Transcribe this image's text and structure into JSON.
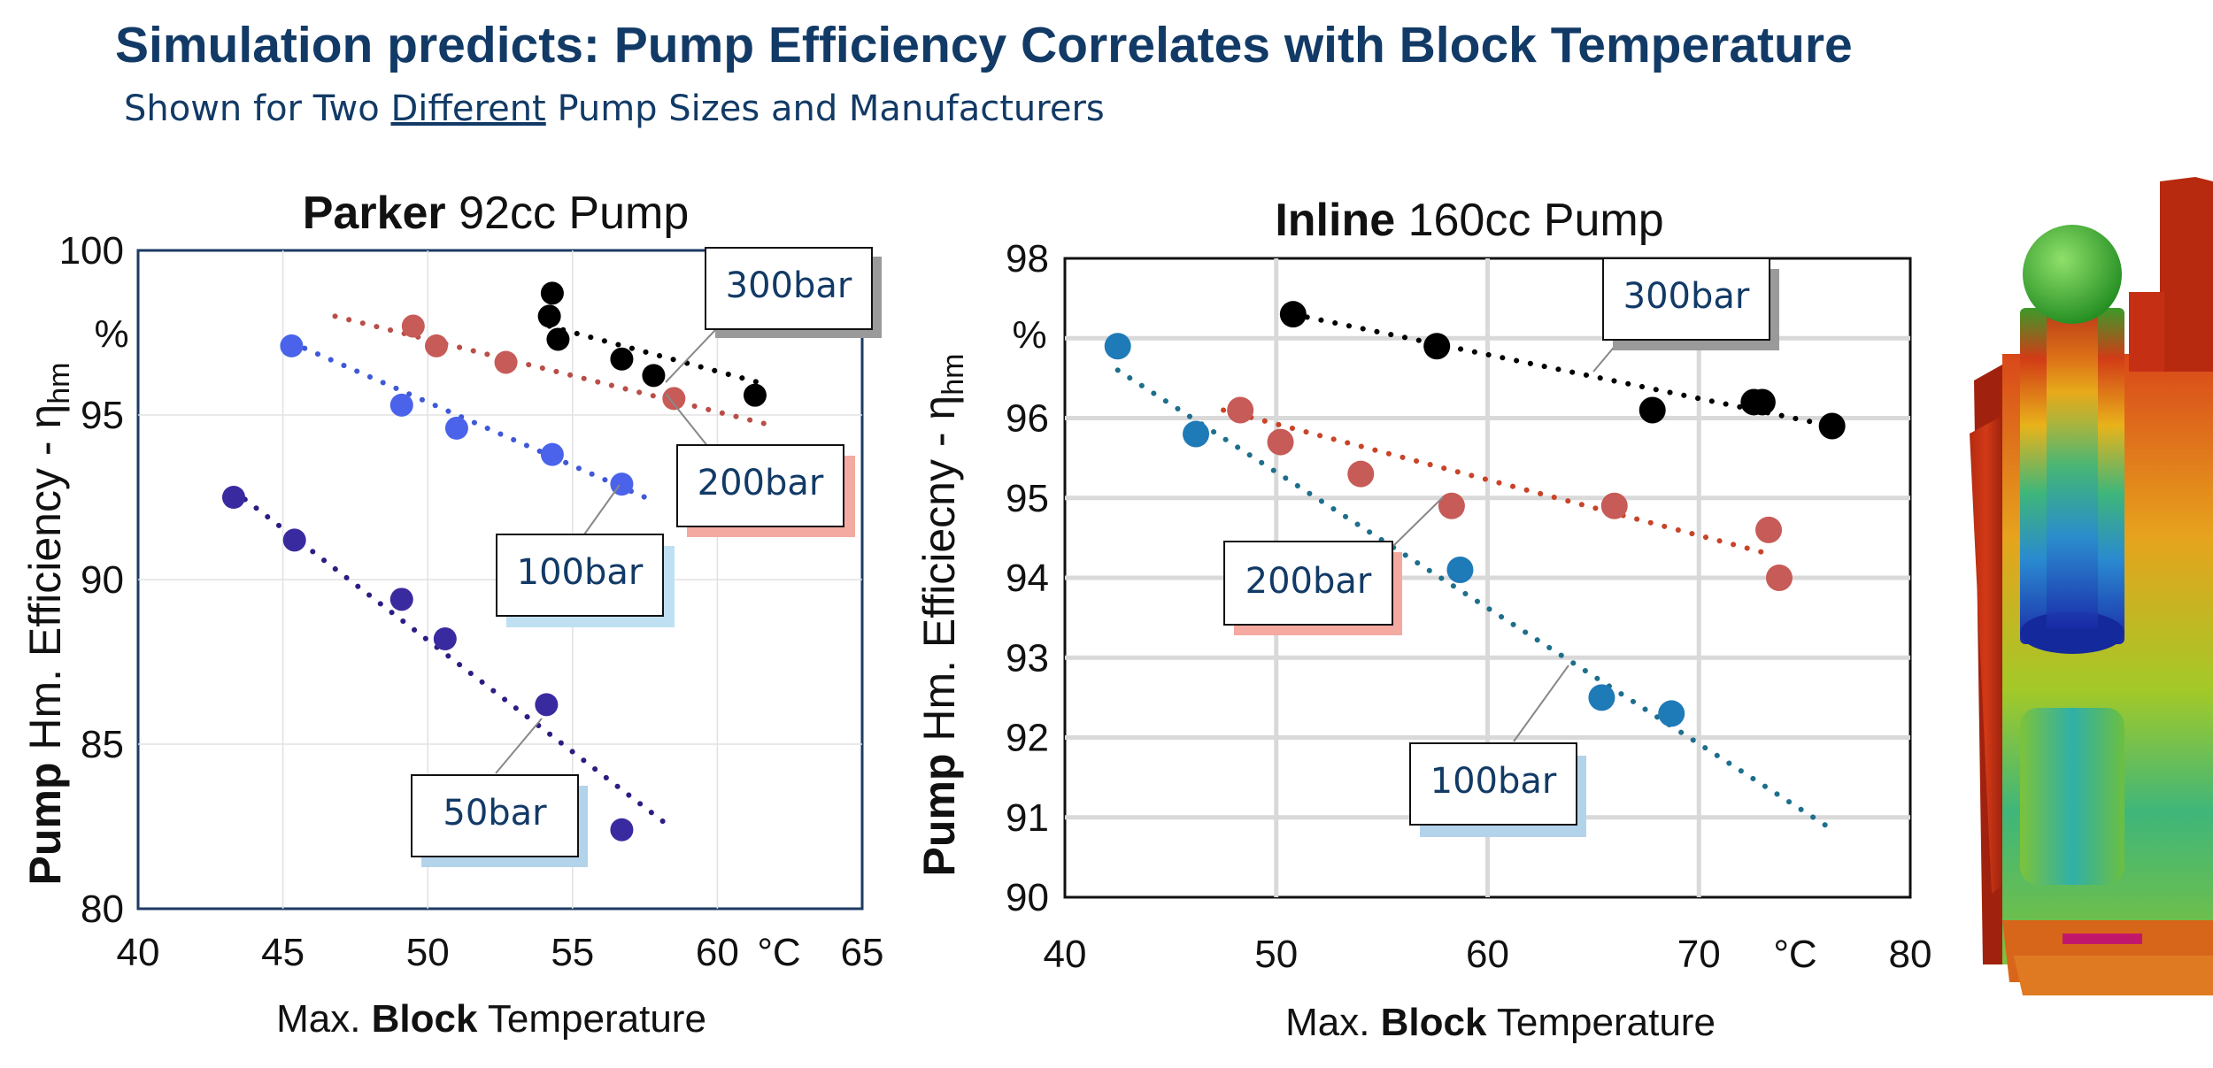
{
  "header": {
    "title": "Simulation predicts: Pump Efficiency Correlates with Block Temperature",
    "subtitle_before": "Shown for Two ",
    "subtitle_emph": "Different",
    "subtitle_after": " Pump Sizes and Manufacturers"
  },
  "chart_data": [
    {
      "type": "scatter",
      "title_bold": "Parker",
      "title_rest": " 92cc Pump",
      "ylabel_bold": "Pump",
      "ylabel_rest": " Hm. Efficiency - η",
      "ylabel_sub": "hm",
      "ylabel_unit": "%",
      "xlabel_pre": "Max. ",
      "xlabel_bold": "Block",
      "xlabel_post": " Temperature",
      "xunit": "°C",
      "xlim": [
        40,
        65
      ],
      "ylim": [
        80,
        100
      ],
      "xticks": [
        40,
        45,
        50,
        55,
        60,
        65
      ],
      "yticks": [
        80,
        85,
        90,
        95,
        100
      ],
      "grid": true,
      "series": [
        {
          "name": "50bar",
          "color": "#3a2aa0",
          "trend_color": "#2a1e82",
          "x": [
            43.3,
            45.4,
            49.1,
            50.6,
            54.1,
            56.7
          ],
          "y": [
            92.5,
            91.2,
            89.4,
            88.2,
            86.2,
            82.4
          ],
          "trend": [
            [
              43.3,
              92.7
            ],
            [
              58.2,
              82.6
            ]
          ]
        },
        {
          "name": "100bar",
          "color": "#4a63ea",
          "trend_color": "#3f58d8",
          "x": [
            45.3,
            49.1,
            51.0,
            54.3,
            56.7
          ],
          "y": [
            97.1,
            95.3,
            94.6,
            93.8,
            92.9
          ],
          "trend": [
            [
              45.3,
              97.2
            ],
            [
              57.5,
              92.5
            ]
          ]
        },
        {
          "name": "200bar",
          "color": "#c75b57",
          "trend_color": "#b84e48",
          "x": [
            49.5,
            50.3,
            52.7,
            58.5
          ],
          "y": [
            97.7,
            97.1,
            96.6,
            95.5
          ],
          "trend": [
            [
              46.8,
              98.0
            ],
            [
              61.8,
              94.7
            ]
          ]
        },
        {
          "name": "300bar",
          "color": "#000000",
          "trend_color": "#000000",
          "x": [
            54.2,
            54.3,
            54.5,
            56.7,
            57.8,
            61.3
          ],
          "y": [
            98.0,
            98.7,
            97.3,
            96.7,
            96.2,
            95.6
          ],
          "trend": [
            [
              54.2,
              97.7
            ],
            [
              61.8,
              95.9
            ]
          ]
        }
      ],
      "annotations": [
        "300bar",
        "200bar",
        "100bar",
        "50bar"
      ]
    },
    {
      "type": "scatter",
      "title_bold": "Inline",
      "title_rest": " 160cc Pump",
      "ylabel_bold": "Pump",
      "ylabel_rest": " Hm. Efficiecny - η",
      "ylabel_sub": "hm",
      "ylabel_unit": "%",
      "xlabel_pre": "Max. ",
      "xlabel_bold": "Block",
      "xlabel_post": " Temperature",
      "xunit": "°C",
      "xlim": [
        40,
        80
      ],
      "ylim": [
        90,
        98
      ],
      "xticks": [
        40,
        50,
        60,
        70,
        80
      ],
      "yticks": [
        90,
        91,
        92,
        93,
        94,
        95,
        96,
        97,
        98
      ],
      "ytick_labels": [
        "90",
        "91",
        "92",
        "93",
        "94",
        "95",
        "96",
        "",
        "98"
      ],
      "grid": true,
      "series": [
        {
          "name": "100bar",
          "color": "#1f7ab8",
          "trend_color": "#1d6f8c",
          "x": [
            42.5,
            46.2,
            58.7,
            65.4,
            68.7
          ],
          "y": [
            96.9,
            95.8,
            94.1,
            92.5,
            92.3
          ],
          "trend": [
            [
              42.5,
              96.6
            ],
            [
              76.0,
              90.9
            ]
          ]
        },
        {
          "name": "200bar",
          "color": "#c75b57",
          "trend_color": "#c84328",
          "x": [
            48.3,
            50.2,
            54.0,
            58.3,
            66.0,
            73.3,
            73.8
          ],
          "y": [
            96.1,
            95.7,
            95.3,
            94.9,
            94.9,
            94.6,
            94.0
          ],
          "trend": [
            [
              47.5,
              96.1
            ],
            [
              73.3,
              94.3
            ]
          ]
        },
        {
          "name": "300bar",
          "color": "#000000",
          "trend_color": "#000000",
          "x": [
            50.8,
            57.6,
            67.8,
            72.6,
            73.0,
            76.3
          ],
          "y": [
            97.3,
            96.9,
            96.1,
            96.2,
            96.2,
            95.9
          ],
          "trend": [
            [
              50.8,
              97.3
            ],
            [
              76.3,
              95.9
            ]
          ]
        }
      ],
      "annotations": [
        "300bar",
        "200bar",
        "100bar"
      ]
    }
  ],
  "thermal_model": {
    "description_color_hot": "#c0240e",
    "description_color_cold": "#1a3dbf"
  }
}
